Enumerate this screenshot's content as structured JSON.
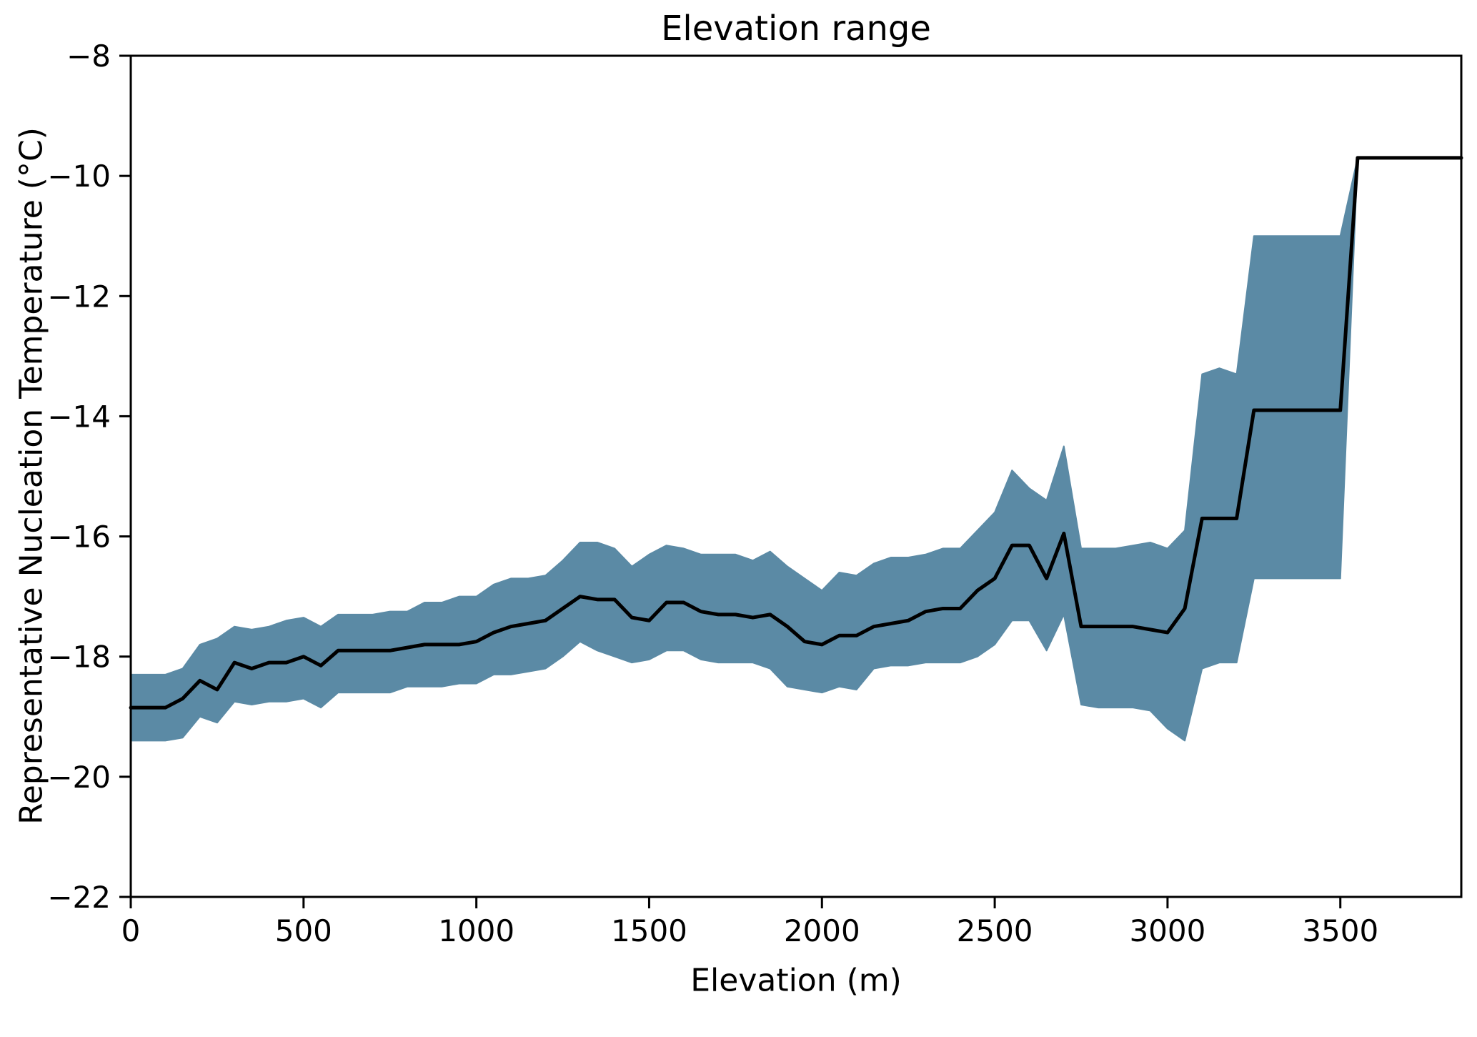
{
  "chart_data": {
    "type": "line",
    "title": "Elevation range",
    "xlabel": "Elevation (m)",
    "ylabel": "Representative Nucleation Temperature (°C)",
    "xlim": [
      0,
      3850
    ],
    "ylim": [
      -22,
      -8
    ],
    "grid": false,
    "legend": null,
    "x_ticks": [
      0,
      500,
      1000,
      1500,
      2000,
      2500,
      3000,
      3500
    ],
    "x_ticklabels": [
      "0",
      "500",
      "1000",
      "1500",
      "2000",
      "2500",
      "3000",
      "3500"
    ],
    "y_ticks": [
      -8,
      -10,
      -12,
      -14,
      -16,
      -18,
      -20,
      -22
    ],
    "y_ticklabels": [
      "−8",
      "−10",
      "−12",
      "−14",
      "−16",
      "−18",
      "−20",
      "−22"
    ],
    "colors": {
      "band_fill": "#5b8aa5",
      "median_line": "#000000",
      "axes": "#000000",
      "background": "#ffffff"
    },
    "x": [
      0,
      50,
      100,
      150,
      200,
      250,
      300,
      350,
      400,
      450,
      500,
      550,
      600,
      650,
      700,
      750,
      800,
      850,
      900,
      950,
      1000,
      1050,
      1100,
      1150,
      1200,
      1250,
      1300,
      1350,
      1400,
      1450,
      1500,
      1550,
      1600,
      1650,
      1700,
      1750,
      1800,
      1850,
      1900,
      1950,
      2000,
      2050,
      2100,
      2150,
      2200,
      2250,
      2300,
      2350,
      2400,
      2450,
      2500,
      2550,
      2600,
      2650,
      2700,
      2750,
      2800,
      2850,
      2900,
      2950,
      3000,
      3050,
      3100,
      3150,
      3200,
      3250,
      3300,
      3350,
      3400,
      3450,
      3500,
      3550,
      3600,
      3650,
      3700,
      3750,
      3800,
      3850
    ],
    "series": [
      {
        "name": "median_nucleation_temperature",
        "values": [
          -18.85,
          -18.85,
          -18.85,
          -18.7,
          -18.4,
          -18.55,
          -18.1,
          -18.2,
          -18.1,
          -18.1,
          -18.0,
          -18.15,
          -17.9,
          -17.9,
          -17.9,
          -17.9,
          -17.85,
          -17.8,
          -17.8,
          -17.8,
          -17.75,
          -17.6,
          -17.5,
          -17.45,
          -17.4,
          -17.2,
          -17.0,
          -17.05,
          -17.05,
          -17.35,
          -17.4,
          -17.1,
          -17.1,
          -17.25,
          -17.3,
          -17.3,
          -17.35,
          -17.3,
          -17.5,
          -17.75,
          -17.8,
          -17.65,
          -17.65,
          -17.5,
          -17.45,
          -17.4,
          -17.25,
          -17.2,
          -17.2,
          -16.9,
          -16.7,
          -16.15,
          -16.15,
          -16.7,
          -15.95,
          -17.5,
          -17.5,
          -17.5,
          -17.5,
          -17.55,
          -17.6,
          -17.2,
          -15.7,
          -15.7,
          -15.7,
          -13.9,
          -13.9,
          -13.9,
          -13.9,
          -13.9,
          -13.9,
          -9.7,
          -9.7,
          -9.7,
          -9.7,
          -9.7,
          -9.7,
          -9.7
        ]
      },
      {
        "name": "band_upper",
        "values": [
          -18.3,
          -18.3,
          -18.3,
          -18.2,
          -17.8,
          -17.7,
          -17.5,
          -17.55,
          -17.5,
          -17.4,
          -17.35,
          -17.5,
          -17.3,
          -17.3,
          -17.3,
          -17.25,
          -17.25,
          -17.1,
          -17.1,
          -17.0,
          -17.0,
          -16.8,
          -16.7,
          -16.7,
          -16.65,
          -16.4,
          -16.1,
          -16.1,
          -16.2,
          -16.5,
          -16.3,
          -16.15,
          -16.2,
          -16.3,
          -16.3,
          -16.3,
          -16.4,
          -16.25,
          -16.5,
          -16.7,
          -16.9,
          -16.6,
          -16.65,
          -16.45,
          -16.35,
          -16.35,
          -16.3,
          -16.2,
          -16.2,
          -15.9,
          -15.6,
          -14.9,
          -15.2,
          -15.4,
          -14.5,
          -16.2,
          -16.2,
          -16.2,
          -16.15,
          -16.1,
          -16.2,
          -15.9,
          -13.3,
          -13.2,
          -13.3,
          -11.0,
          -11.0,
          -11.0,
          -11.0,
          -11.0,
          -11.0,
          -9.7,
          -9.7,
          -9.7,
          -9.7,
          -9.7,
          -9.7,
          -9.7
        ]
      },
      {
        "name": "band_lower",
        "values": [
          -19.4,
          -19.4,
          -19.4,
          -19.35,
          -19.0,
          -19.1,
          -18.75,
          -18.8,
          -18.75,
          -18.75,
          -18.7,
          -18.85,
          -18.6,
          -18.6,
          -18.6,
          -18.6,
          -18.5,
          -18.5,
          -18.5,
          -18.45,
          -18.45,
          -18.3,
          -18.3,
          -18.25,
          -18.2,
          -18.0,
          -17.75,
          -17.9,
          -18.0,
          -18.1,
          -18.05,
          -17.9,
          -17.9,
          -18.05,
          -18.1,
          -18.1,
          -18.1,
          -18.2,
          -18.5,
          -18.55,
          -18.6,
          -18.5,
          -18.55,
          -18.2,
          -18.15,
          -18.15,
          -18.1,
          -18.1,
          -18.1,
          -18.0,
          -17.8,
          -17.4,
          -17.4,
          -17.9,
          -17.3,
          -18.8,
          -18.85,
          -18.85,
          -18.85,
          -18.9,
          -19.2,
          -19.4,
          -18.2,
          -18.1,
          -18.1,
          -16.7,
          -16.7,
          -16.7,
          -16.7,
          -16.7,
          -16.7,
          -9.7,
          -9.7,
          -9.7,
          -9.7,
          -9.7,
          -9.7,
          -9.7
        ]
      }
    ]
  }
}
